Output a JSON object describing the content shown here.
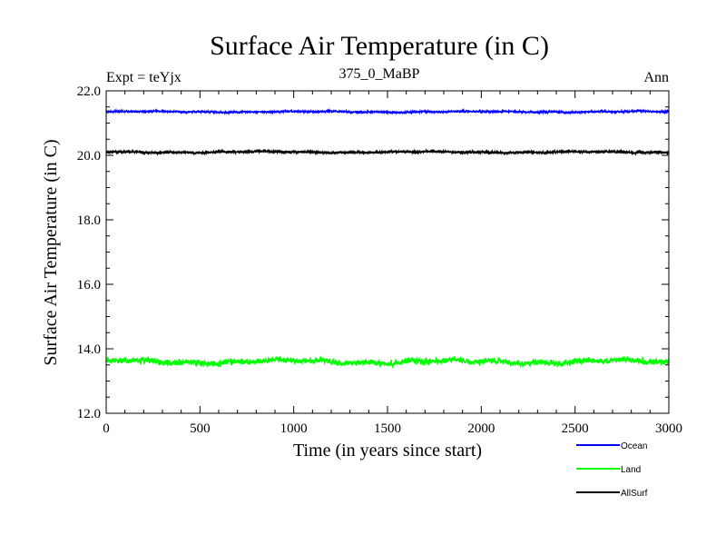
{
  "chart_data": {
    "type": "line",
    "title": "Surface Air Temperature (in C)",
    "subtitle_left": "Expt = teYjx",
    "subtitle_center": "375_0_MaBP",
    "subtitle_right": "Ann",
    "xlabel": "Time (in years since start)",
    "ylabel": "Surface Air Temperature (in C)",
    "xlim": [
      0,
      3000
    ],
    "ylim": [
      12.0,
      22.0
    ],
    "xticks": [
      0,
      500,
      1000,
      1500,
      2000,
      2500,
      3000
    ],
    "xtick_labels": [
      "0",
      "500",
      "1000",
      "1500",
      "2000",
      "2500",
      "3000"
    ],
    "yticks": [
      12.0,
      14.0,
      16.0,
      18.0,
      20.0,
      22.0
    ],
    "ytick_labels": [
      "12.0",
      "14.0",
      "16.0",
      "18.0",
      "20.0",
      "22.0"
    ],
    "series": [
      {
        "name": "Ocean",
        "color": "#0000ff",
        "mean": 21.35,
        "noise": 0.05,
        "points": 3000
      },
      {
        "name": "Land",
        "color": "#00ff00",
        "mean": 13.6,
        "noise": 0.18,
        "points": 3000
      },
      {
        "name": "AllSurf",
        "color": "#000000",
        "mean": 20.1,
        "noise": 0.06,
        "points": 3000
      }
    ]
  }
}
